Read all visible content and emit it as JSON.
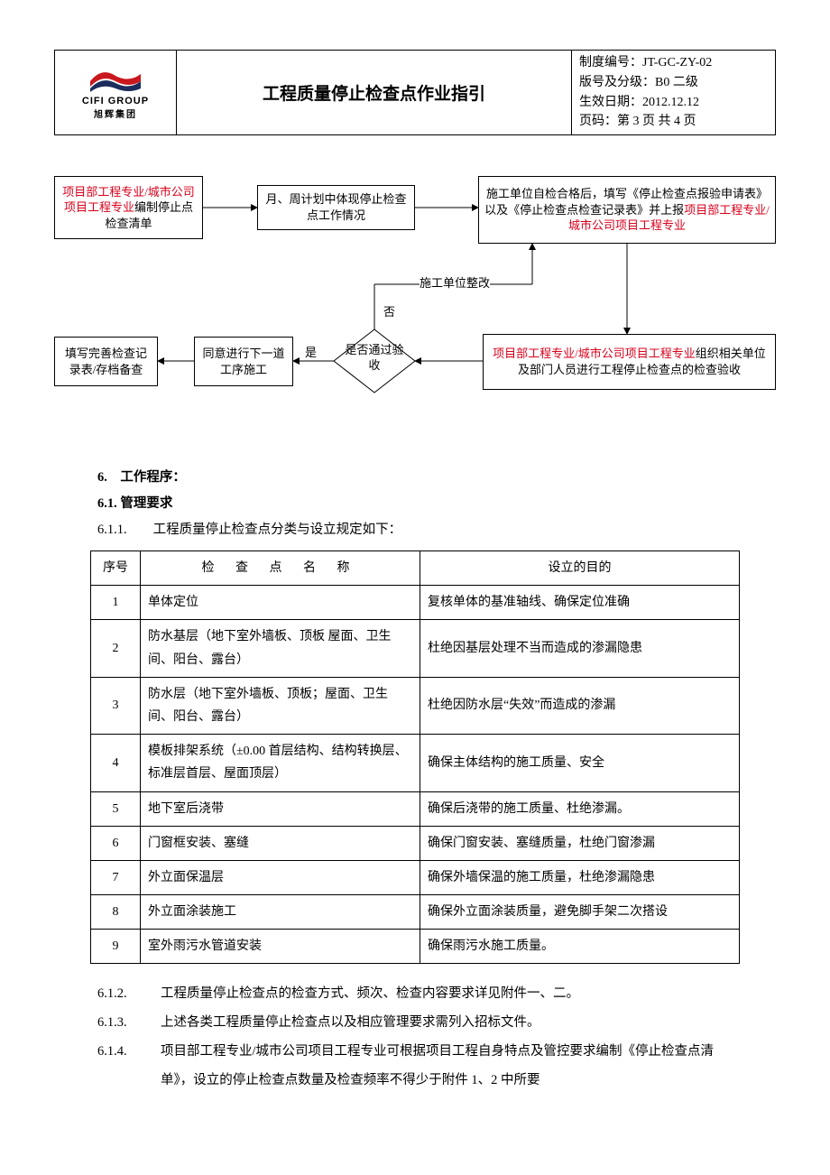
{
  "header": {
    "logo": {
      "line1": "CIFI GROUP",
      "line2": "旭辉集团",
      "top_color": "#c9181e",
      "bottom_color": "#1c2c5c"
    },
    "title": "工程质量停止检查点作业指引",
    "meta": {
      "l1": "制度编号：JT-GC-ZY-02",
      "l2": "版号及分级：B0 二级",
      "l3": "生效日期：2012.12.12",
      "l4": "页码：第 3 页 共 4 页"
    }
  },
  "flow": {
    "box1": {
      "red": "项目部工程专业/城市公司项目工程专业",
      "black": "编制停止点检查清单"
    },
    "box2": "月、周计划中体现停止检查点工作情况",
    "box3": {
      "black1": "施工单位自检合格后，填写《停止检查点报验申请表》以及《停止检查点检查记录表》并上报",
      "red": "项目部工程专业/城市公司项目工程专业"
    },
    "box4": {
      "red": "项目部工程专业/城市公司项目工程专业",
      "black": "组织相关单位及部门人员进行工程停止检查点的检查验收"
    },
    "box5": "同意进行下一道工序施工",
    "box6": "填写完善检查记录表/存档备查",
    "decision": "是否通过验收",
    "label_yes": "是",
    "label_no": "否",
    "label_rectify": "施工单位整改",
    "colors": {
      "line": "#000000",
      "red": "#d9001b"
    }
  },
  "section": {
    "h6": "6.　工作程序：",
    "h61": "6.1. 管理要求",
    "p611": "6.1.1.　　工程质量停止检查点分类与设立规定如下："
  },
  "table": {
    "headers": [
      "序号",
      "检 查 点 名 称",
      "设立的目的"
    ],
    "rows": [
      [
        "1",
        "单体定位",
        "复核单体的基准轴线、确保定位准确"
      ],
      [
        "2",
        "防水基层（地下室外墙板、顶板 屋面、卫生间、阳台、露台）",
        "杜绝因基层处理不当而造成的渗漏隐患"
      ],
      [
        "3",
        "防水层（地下室外墙板、顶板；屋面、卫生间、阳台、露台）",
        "杜绝因防水层“失效”而造成的渗漏"
      ],
      [
        "4",
        "模板排架系统（±0.00 首层结构、结构转换层、标准层首层、屋面顶层）",
        "确保主体结构的施工质量、安全"
      ],
      [
        "5",
        "地下室后浇带",
        "确保后浇带的施工质量、杜绝渗漏。"
      ],
      [
        "6",
        "门窗框安装、塞缝",
        "确保门窗安装、塞缝质量，杜绝门窗渗漏"
      ],
      [
        "7",
        "外立面保温层",
        "确保外墙保温的施工质量，杜绝渗漏隐患"
      ],
      [
        "8",
        "外立面涂装施工",
        "确保外立面涂装质量，避免脚手架二次搭设"
      ],
      [
        "9",
        "室外雨污水管道安装",
        "确保雨污水施工质量。"
      ]
    ]
  },
  "paras": {
    "p612": {
      "num": "6.1.2.",
      "txt": "工程质量停止检查点的检查方式、频次、检查内容要求详见附件一、二。"
    },
    "p613": {
      "num": "6.1.3.",
      "txt": "上述各类工程质量停止检查点以及相应管理要求需列入招标文件。"
    },
    "p614": {
      "num": "6.1.4.",
      "txt": "项目部工程专业/城市公司项目工程专业可根据项目工程自身特点及管控要求编制《停止检查点清单》，设立的停止检查点数量及检查频率不得少于附件 1、2 中所要"
    }
  }
}
